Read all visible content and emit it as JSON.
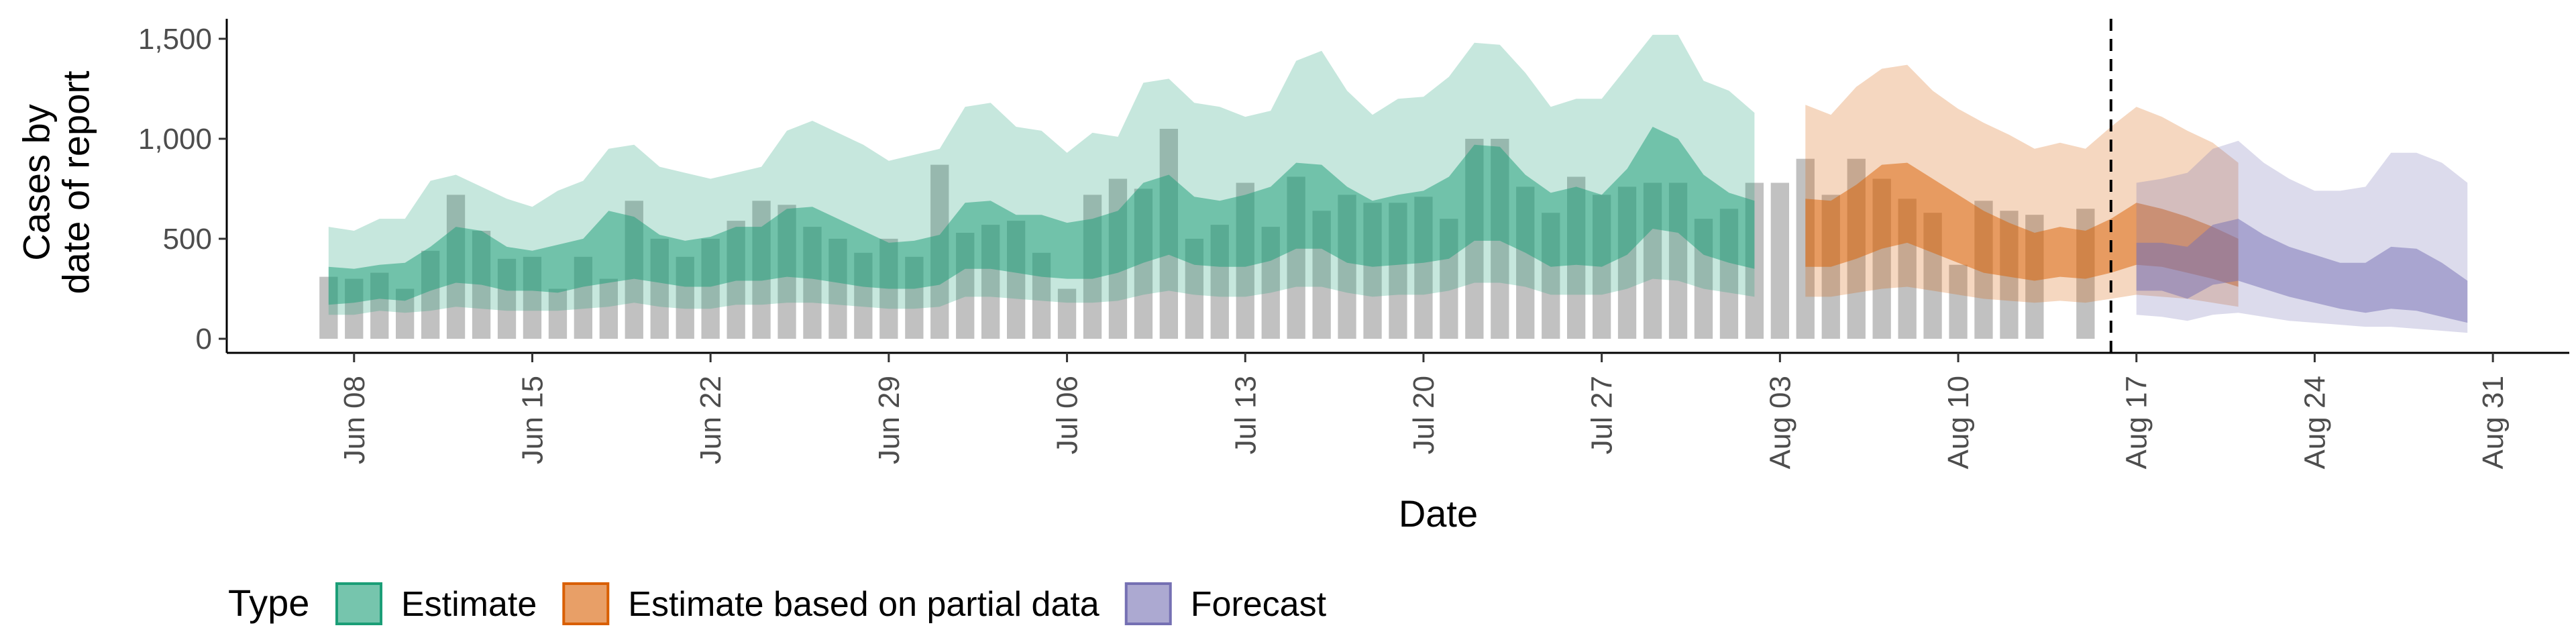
{
  "chart_data": {
    "type": "area",
    "xlabel": "Date",
    "ylabel": [
      "Cases by",
      "date of report"
    ],
    "x_start": "2020-06-07",
    "ylim": [
      0,
      1600
    ],
    "yticks": [
      0,
      500,
      1000,
      1500
    ],
    "ytick_labels": [
      "0",
      "500",
      "1,000",
      "1,500"
    ],
    "xticks": [
      {
        "date": "2020-06-08",
        "label": "Jun 08"
      },
      {
        "date": "2020-06-15",
        "label": "Jun 15"
      },
      {
        "date": "2020-06-22",
        "label": "Jun 22"
      },
      {
        "date": "2020-06-29",
        "label": "Jun 29"
      },
      {
        "date": "2020-07-06",
        "label": "Jul 06"
      },
      {
        "date": "2020-07-13",
        "label": "Jul 13"
      },
      {
        "date": "2020-07-20",
        "label": "Jul 20"
      },
      {
        "date": "2020-07-27",
        "label": "Jul 27"
      },
      {
        "date": "2020-08-03",
        "label": "Aug 03"
      },
      {
        "date": "2020-08-10",
        "label": "Aug 10"
      },
      {
        "date": "2020-08-17",
        "label": "Aug 17"
      },
      {
        "date": "2020-08-24",
        "label": "Aug 24"
      },
      {
        "date": "2020-08-31",
        "label": "Aug 31"
      }
    ],
    "grid": false,
    "legend_placement": "bottom-left",
    "legend_title": "Type",
    "cutoff_date": "2020-08-16",
    "observed_cases": {
      "start": "2020-06-07",
      "values": [
        310,
        300,
        330,
        250,
        440,
        720,
        540,
        400,
        410,
        250,
        410,
        300,
        690,
        500,
        410,
        500,
        590,
        690,
        670,
        560,
        500,
        430,
        500,
        410,
        870,
        530,
        570,
        590,
        430,
        250,
        720,
        800,
        750,
        1050,
        500,
        570,
        780,
        560,
        810,
        640,
        720,
        680,
        680,
        710,
        600,
        1000,
        1000,
        760,
        630,
        810,
        720,
        760,
        780,
        780,
        600,
        650,
        780,
        780,
        900,
        720,
        900,
        800,
        700,
        630,
        370,
        690,
        640,
        620,
        0,
        650
      ]
    },
    "series": [
      {
        "name": "Estimate",
        "color": "#1b9e77",
        "start": "2020-06-07",
        "upper90": [
          560,
          540,
          600,
          600,
          790,
          820,
          760,
          700,
          660,
          740,
          790,
          950,
          970,
          860,
          830,
          800,
          830,
          860,
          1040,
          1090,
          1030,
          970,
          890,
          920,
          950,
          1160,
          1180,
          1060,
          1040,
          930,
          1030,
          1010,
          1280,
          1300,
          1180,
          1160,
          1110,
          1140,
          1390,
          1440,
          1240,
          1120,
          1200,
          1210,
          1310,
          1480,
          1470,
          1330,
          1160,
          1200,
          1200,
          1360,
          1520,
          1520,
          1290,
          1240,
          1130
        ],
        "upper50": [
          360,
          350,
          370,
          380,
          460,
          560,
          540,
          460,
          440,
          470,
          500,
          640,
          610,
          520,
          490,
          510,
          560,
          560,
          650,
          660,
          600,
          540,
          480,
          490,
          520,
          680,
          690,
          620,
          620,
          580,
          600,
          640,
          780,
          820,
          710,
          690,
          720,
          760,
          880,
          870,
          760,
          690,
          720,
          740,
          810,
          970,
          960,
          820,
          730,
          760,
          720,
          850,
          1060,
          1000,
          820,
          730,
          690
        ],
        "lower50": [
          170,
          180,
          200,
          190,
          240,
          280,
          270,
          240,
          240,
          230,
          260,
          280,
          300,
          280,
          260,
          260,
          290,
          290,
          310,
          300,
          280,
          260,
          250,
          250,
          270,
          350,
          350,
          330,
          310,
          300,
          300,
          330,
          380,
          420,
          370,
          360,
          360,
          390,
          450,
          450,
          380,
          360,
          370,
          380,
          400,
          490,
          490,
          430,
          360,
          370,
          360,
          420,
          550,
          530,
          420,
          380,
          350
        ],
        "lower90": [
          120,
          120,
          140,
          130,
          140,
          160,
          150,
          140,
          140,
          140,
          150,
          160,
          180,
          160,
          150,
          150,
          170,
          170,
          180,
          180,
          170,
          160,
          150,
          150,
          160,
          210,
          210,
          200,
          190,
          180,
          180,
          190,
          220,
          240,
          220,
          210,
          210,
          230,
          260,
          260,
          230,
          210,
          220,
          220,
          240,
          280,
          280,
          260,
          220,
          220,
          220,
          250,
          300,
          290,
          250,
          230,
          210
        ]
      },
      {
        "name": "Estimate based on partial data",
        "color": "#d95f02",
        "start": "2020-08-04",
        "upper90": [
          1170,
          1120,
          1260,
          1350,
          1370,
          1240,
          1150,
          1080,
          1020,
          950,
          980,
          950,
          1060,
          1160,
          1110,
          1040,
          980,
          880
        ],
        "upper50": [
          700,
          690,
          770,
          870,
          880,
          800,
          720,
          640,
          580,
          530,
          560,
          540,
          600,
          680,
          650,
          610,
          560,
          500
        ],
        "lower50": [
          360,
          360,
          400,
          450,
          480,
          430,
          380,
          330,
          310,
          290,
          310,
          300,
          330,
          370,
          360,
          330,
          300,
          260
        ],
        "lower90": [
          210,
          210,
          230,
          250,
          260,
          240,
          220,
          200,
          190,
          180,
          190,
          180,
          200,
          220,
          210,
          200,
          180,
          160
        ]
      },
      {
        "name": "Forecast",
        "color": "#7570b3",
        "start": "2020-08-17",
        "upper90": [
          780,
          800,
          830,
          950,
          990,
          880,
          800,
          740,
          740,
          760,
          930,
          930,
          880,
          780
        ],
        "upper50": [
          480,
          480,
          460,
          570,
          600,
          520,
          460,
          420,
          380,
          380,
          460,
          450,
          380,
          290
        ],
        "lower50": [
          240,
          240,
          200,
          270,
          290,
          250,
          210,
          180,
          150,
          130,
          150,
          140,
          110,
          80
        ],
        "lower90": [
          120,
          110,
          90,
          120,
          130,
          110,
          90,
          80,
          70,
          60,
          60,
          50,
          40,
          30
        ]
      }
    ]
  }
}
